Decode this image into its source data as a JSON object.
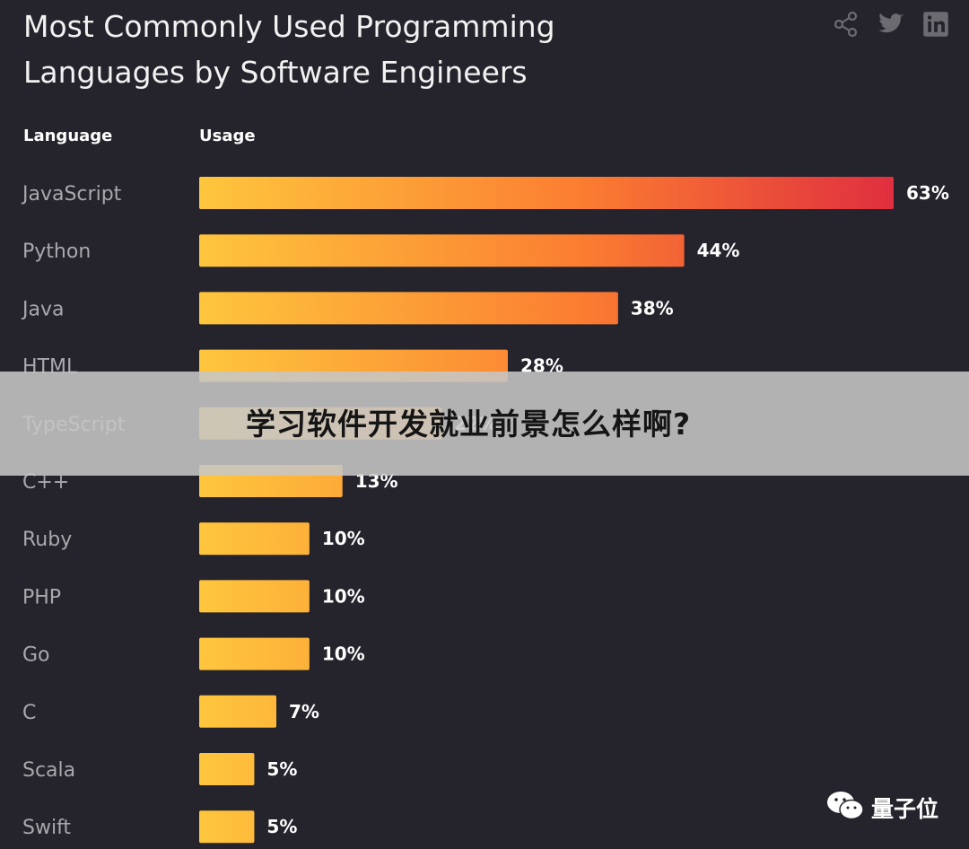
{
  "title": "Most Commonly Used Programming Languages by Software Engineers",
  "header": {
    "language_col": "Language",
    "usage_col": "Usage"
  },
  "share_icons": [
    "share-icon",
    "twitter-icon",
    "linkedin-icon"
  ],
  "overlay_text": "学习软件开发就业前景怎么样啊?",
  "watermark": "量子位",
  "chart_data": {
    "type": "bar",
    "orientation": "horizontal",
    "categories": [
      "JavaScript",
      "Python",
      "Java",
      "HTML",
      "TypeScript",
      "C++",
      "Ruby",
      "PHP",
      "Go",
      "C",
      "Scala",
      "Swift"
    ],
    "values": [
      63,
      44,
      38,
      28,
      22,
      13,
      10,
      10,
      10,
      7,
      5,
      5
    ],
    "value_labels": [
      "63%",
      "44%",
      "38%",
      "28%",
      "22%",
      "13%",
      "10%",
      "10%",
      "10%",
      "7%",
      "5%",
      "5%"
    ],
    "xlabel": "Usage",
    "ylabel": "Language",
    "xlim": [
      0,
      63
    ],
    "colors": {
      "gradient_start": "#fec63d",
      "gradient_end": "#e02f3f",
      "background": "#25232b"
    }
  }
}
